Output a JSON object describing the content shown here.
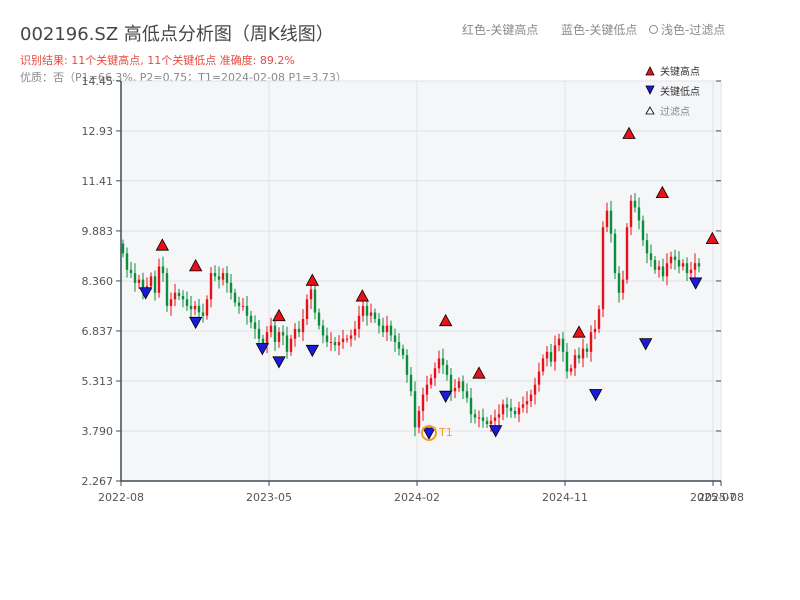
{
  "header": {
    "title": "002196.SZ 高低点分析图（周K线图）",
    "result_line": "识别结果: 11个关键高点, 11个关键低点   准确度: 89.2%",
    "quality_line": "优质：否（P1=66.3%, P2=0.75；T1=2024-02-08 P1=3.73）"
  },
  "top_legend": {
    "item1": "红色-关键高点",
    "item2": "蓝色-关键低点",
    "item3": "浅色-过滤点"
  },
  "colors": {
    "up": "#e8111a",
    "down": "#0a8f3c",
    "high_marker": "#e8111a",
    "low_marker": "#1a1adb",
    "t1_marker": "#f0a020",
    "axis": "#3c4a55",
    "plot_bg": "#f5f6f8",
    "grid": "#dfe2e6"
  },
  "chart_data": {
    "type": "candlestick",
    "yticks": [
      "2.267",
      "3.790",
      "5.313",
      "6.837",
      "8.360",
      "9.883",
      "11.41",
      "12.93",
      "14.45"
    ],
    "ylim": [
      2.267,
      14.45
    ],
    "xticks": [
      "2022-08",
      "2023-05",
      "2024-02",
      "2024-11",
      "2025-07",
      "2025-08"
    ],
    "x_range": [
      0,
      150
    ],
    "xtick_positions": [
      0,
      37,
      74,
      111,
      148,
      150
    ],
    "legend": [
      "关键高点",
      "关键低点",
      "过滤点"
    ],
    "t1_label": "T1",
    "close": [
      9.2,
      8.7,
      8.6,
      8.3,
      8.4,
      8.1,
      8.2,
      8.5,
      8.0,
      8.8,
      8.6,
      7.6,
      7.8,
      8.0,
      7.9,
      7.8,
      7.6,
      7.5,
      7.6,
      7.4,
      7.3,
      7.8,
      8.6,
      8.5,
      8.4,
      8.6,
      8.3,
      8.0,
      7.7,
      7.6,
      7.6,
      7.3,
      7.1,
      6.9,
      6.6,
      6.4,
      6.8,
      7.0,
      6.5,
      6.8,
      6.7,
      6.2,
      6.6,
      6.9,
      6.8,
      7.2,
      7.8,
      8.1,
      7.4,
      7.0,
      6.7,
      6.5,
      6.5,
      6.4,
      6.5,
      6.6,
      6.6,
      6.7,
      6.9,
      7.3,
      7.6,
      7.3,
      7.4,
      7.2,
      7.0,
      6.8,
      7.0,
      6.7,
      6.5,
      6.3,
      6.1,
      5.5,
      5.0,
      3.9,
      4.4,
      4.9,
      5.2,
      5.4,
      5.7,
      6.0,
      5.8,
      5.5,
      5.0,
      5.1,
      5.3,
      5.0,
      4.8,
      4.3,
      4.2,
      4.2,
      4.1,
      4.0,
      4.1,
      4.2,
      4.3,
      4.6,
      4.5,
      4.4,
      4.3,
      4.5,
      4.6,
      4.7,
      4.9,
      5.2,
      5.6,
      6.0,
      6.2,
      5.9,
      6.4,
      6.6,
      6.2,
      5.6,
      5.7,
      6.1,
      6.0,
      6.3,
      6.2,
      6.8,
      6.9,
      7.5,
      10.0,
      10.5,
      9.8,
      8.6,
      8.0,
      8.4,
      10.0,
      10.8,
      10.6,
      10.2,
      9.6,
      9.2,
      9.0,
      8.7,
      8.8,
      8.5,
      8.9,
      9.1,
      9.0,
      8.8,
      8.9,
      8.6,
      8.7,
      8.9,
      8.8
    ],
    "key_highs": [
      {
        "date": "2022-10",
        "value": 9.45
      },
      {
        "date": "2022-12",
        "value": 8.82
      },
      {
        "date": "2023-05",
        "value": 7.3
      },
      {
        "date": "2023-07",
        "value": 8.38
      },
      {
        "date": "2023-10",
        "value": 7.9
      },
      {
        "date": "2024-03",
        "value": 7.15
      },
      {
        "date": "2024-05",
        "value": 5.55
      },
      {
        "date": "2024-11",
        "value": 6.8
      },
      {
        "date": "2025-02",
        "value": 12.85
      },
      {
        "date": "2025-04",
        "value": 11.05
      },
      {
        "date": "2025-07",
        "value": 9.65
      }
    ],
    "key_lows": [
      {
        "date": "2022-09",
        "value": 8.0
      },
      {
        "date": "2022-12",
        "value": 7.1
      },
      {
        "date": "2023-04",
        "value": 6.3
      },
      {
        "date": "2023-05",
        "value": 5.9
      },
      {
        "date": "2023-07",
        "value": 6.25
      },
      {
        "date": "2024-02",
        "value": 3.73
      },
      {
        "date": "2024-03",
        "value": 4.85
      },
      {
        "date": "2024-06",
        "value": 3.8
      },
      {
        "date": "2024-12",
        "value": 4.9
      },
      {
        "date": "2025-03",
        "value": 6.45
      },
      {
        "date": "2025-06",
        "value": 8.3
      }
    ]
  }
}
